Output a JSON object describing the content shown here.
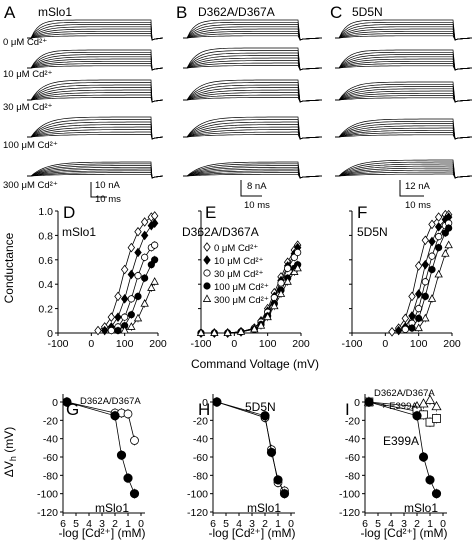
{
  "traces": {
    "panels": [
      {
        "letter": "A",
        "title": "mSlo1",
        "concentrations": [
          "0 μM Cd²⁺",
          "10 μM Cd²⁺",
          "30 μM Cd²⁺",
          "100 μM Cd²⁺",
          "300 μM Cd²⁺"
        ]
      },
      {
        "letter": "B",
        "title": "D362A/D367A",
        "scale_current": "8 nA",
        "scale_time": "10 ms"
      },
      {
        "letter": "C",
        "title": "5D5N",
        "scale_current": "12 nA",
        "scale_time": "10 ms"
      }
    ],
    "scale_a_current": "10 nA",
    "scale_a_time": "10 ms"
  },
  "gv_axes": {
    "ylabel": "Conductance",
    "xlabel": "Command Voltage (mV)",
    "yticks": [
      "1.0",
      "0.8",
      "0.6",
      "0.4",
      "0.2",
      "0"
    ],
    "xticks": [
      "-100",
      "0",
      "100",
      "200"
    ]
  },
  "dvh_axes": {
    "ylabel": "ΔV",
    "ylabel_sub": "h",
    "ylabel_unit": " (mV)",
    "xlabel": "-log [Cd²⁺] (mM)",
    "yticks": [
      "0",
      "-20",
      "-40",
      "-60",
      "-80",
      "-100",
      "-120"
    ],
    "xticks": [
      "6",
      "5",
      "4",
      "3",
      "2",
      "1",
      "0"
    ]
  },
  "chart_data": [
    {
      "type": "scatter",
      "panel": "D",
      "title": "mSlo1",
      "xlim": [
        -100,
        200
      ],
      "ylim": [
        0,
        1.0
      ],
      "series": [
        {
          "marker": "open-diamond",
          "x": [
            20,
            40,
            60,
            80,
            100,
            120,
            140,
            160,
            180,
            190
          ],
          "y": [
            0.02,
            0.05,
            0.13,
            0.3,
            0.52,
            0.7,
            0.83,
            0.91,
            0.95,
            0.96
          ]
        },
        {
          "marker": "filled-diamond",
          "x": [
            40,
            60,
            80,
            100,
            120,
            140,
            160,
            180,
            190
          ],
          "y": [
            0.02,
            0.05,
            0.13,
            0.28,
            0.48,
            0.66,
            0.8,
            0.88,
            0.9
          ]
        },
        {
          "marker": "open-circle",
          "x": [
            60,
            80,
            100,
            120,
            140,
            160,
            180,
            190
          ],
          "y": [
            0.02,
            0.05,
            0.13,
            0.28,
            0.47,
            0.62,
            0.7,
            0.72
          ]
        },
        {
          "marker": "filled-circle",
          "x": [
            80,
            100,
            120,
            140,
            160,
            180,
            190
          ],
          "y": [
            0.02,
            0.06,
            0.15,
            0.3,
            0.45,
            0.56,
            0.6
          ]
        },
        {
          "marker": "open-triangle",
          "x": [
            100,
            120,
            140,
            160,
            180,
            190
          ],
          "y": [
            0.02,
            0.05,
            0.12,
            0.24,
            0.37,
            0.42
          ]
        }
      ]
    },
    {
      "type": "scatter",
      "panel": "E",
      "title": "D362A/D367A",
      "xlim": [
        -100,
        200
      ],
      "ylim": [
        0,
        1.0
      ],
      "series": [
        {
          "name": "0 μM Cd²⁺",
          "marker": "open-diamond",
          "x": [
            -100,
            -60,
            -20,
            20,
            60,
            80,
            100,
            120,
            140,
            160,
            180,
            190
          ],
          "y": [
            0,
            0,
            0,
            0.01,
            0.04,
            0.1,
            0.2,
            0.33,
            0.46,
            0.58,
            0.68,
            0.72
          ]
        },
        {
          "name": "10 μM Cd²⁺",
          "marker": "filled-diamond",
          "x": [
            -100,
            -60,
            -20,
            20,
            60,
            80,
            100,
            120,
            140,
            160,
            180,
            190
          ],
          "y": [
            0,
            0,
            0,
            0.01,
            0.04,
            0.09,
            0.18,
            0.3,
            0.43,
            0.55,
            0.65,
            0.7
          ]
        },
        {
          "name": "30 μM Cd²⁺",
          "marker": "open-circle",
          "x": [
            -100,
            -60,
            -20,
            20,
            60,
            80,
            100,
            120,
            140,
            160,
            180,
            190
          ],
          "y": [
            0,
            0,
            0,
            0.01,
            0.04,
            0.09,
            0.17,
            0.29,
            0.41,
            0.53,
            0.62,
            0.66
          ]
        },
        {
          "name": "100 μM Cd²⁺",
          "marker": "filled-circle",
          "x": [
            -100,
            -60,
            -20,
            20,
            60,
            80,
            100,
            120,
            140,
            160,
            180,
            190
          ],
          "y": [
            0,
            0,
            0,
            0.01,
            0.03,
            0.07,
            0.14,
            0.24,
            0.35,
            0.45,
            0.53,
            0.56
          ]
        },
        {
          "name": "300 μM Cd²⁺",
          "marker": "open-triangle",
          "x": [
            -100,
            -60,
            -20,
            20,
            60,
            80,
            100,
            120,
            140,
            160,
            180,
            190
          ],
          "y": [
            0,
            0,
            0,
            0.01,
            0.03,
            0.06,
            0.13,
            0.22,
            0.32,
            0.42,
            0.5,
            0.53
          ]
        }
      ]
    },
    {
      "type": "scatter",
      "panel": "F",
      "title": "5D5N",
      "xlim": [
        -100,
        200
      ],
      "ylim": [
        0,
        1.0
      ],
      "series": [
        {
          "marker": "open-diamond",
          "x": [
            20,
            40,
            60,
            80,
            100,
            120,
            140,
            160,
            180,
            190
          ],
          "y": [
            0.01,
            0.04,
            0.12,
            0.3,
            0.55,
            0.76,
            0.89,
            0.95,
            0.97,
            0.97
          ]
        },
        {
          "marker": "filled-diamond",
          "x": [
            40,
            60,
            80,
            100,
            120,
            140,
            160,
            180,
            190
          ],
          "y": [
            0.02,
            0.05,
            0.14,
            0.32,
            0.56,
            0.75,
            0.87,
            0.93,
            0.95
          ]
        },
        {
          "marker": "open-circle",
          "x": [
            60,
            80,
            100,
            120,
            140,
            160,
            180,
            190
          ],
          "y": [
            0.03,
            0.08,
            0.2,
            0.42,
            0.63,
            0.79,
            0.88,
            0.9
          ]
        },
        {
          "marker": "filled-circle",
          "x": [
            80,
            100,
            120,
            140,
            160,
            180,
            190
          ],
          "y": [
            0.04,
            0.12,
            0.3,
            0.52,
            0.7,
            0.82,
            0.86
          ]
        },
        {
          "marker": "open-triangle",
          "x": [
            100,
            120,
            140,
            160,
            180,
            190
          ],
          "y": [
            0.04,
            0.12,
            0.28,
            0.48,
            0.65,
            0.72
          ]
        }
      ]
    },
    {
      "type": "line",
      "panel": "G",
      "xlim": [
        6,
        0
      ],
      "ylim": [
        -120,
        0
      ],
      "series": [
        {
          "name": "D362A/D367A",
          "marker": "open-circle",
          "x": [
            5.7,
            2.0,
            1.5,
            1.0,
            0.5
          ],
          "y": [
            0,
            -12,
            -12,
            -13,
            -42
          ]
        },
        {
          "name": "mSlo1",
          "marker": "filled-circle",
          "x": [
            5.7,
            2.0,
            1.5,
            1.0,
            0.5
          ],
          "y": [
            0,
            -15,
            -58,
            -83,
            -100
          ]
        }
      ]
    },
    {
      "type": "line",
      "panel": "H",
      "xlim": [
        6,
        0
      ],
      "ylim": [
        -120,
        0
      ],
      "series": [
        {
          "name": "5D5N",
          "marker": "open-circle",
          "x": [
            5.7,
            2.0,
            1.5,
            1.0,
            0.5
          ],
          "y": [
            0,
            -17,
            -52,
            -88,
            -97
          ]
        },
        {
          "name": "mSlo1",
          "marker": "filled-circle",
          "x": [
            5.7,
            2.0,
            1.5,
            1.0,
            0.5
          ],
          "y": [
            0,
            -15,
            -55,
            -85,
            -100
          ]
        }
      ]
    },
    {
      "type": "line",
      "panel": "I",
      "xlim": [
        6,
        0
      ],
      "ylim": [
        -120,
        0
      ],
      "series": [
        {
          "name": "D362A/D367A + E399A",
          "marker": "open-triangle",
          "x": [
            5.7,
            2.0,
            1.5,
            1.0,
            0.5
          ],
          "y": [
            0,
            -5,
            -2,
            2,
            -5
          ]
        },
        {
          "name": "E399A",
          "marker": "open-square",
          "x": [
            5.7,
            2.0,
            1.5,
            1.0,
            0.5
          ],
          "y": [
            0,
            -10,
            -14,
            -22,
            -18
          ]
        },
        {
          "name": "mSlo1",
          "marker": "filled-circle",
          "x": [
            5.7,
            2.0,
            1.5,
            1.0,
            0.5
          ],
          "y": [
            0,
            -15,
            -60,
            -85,
            -100
          ]
        }
      ]
    }
  ]
}
